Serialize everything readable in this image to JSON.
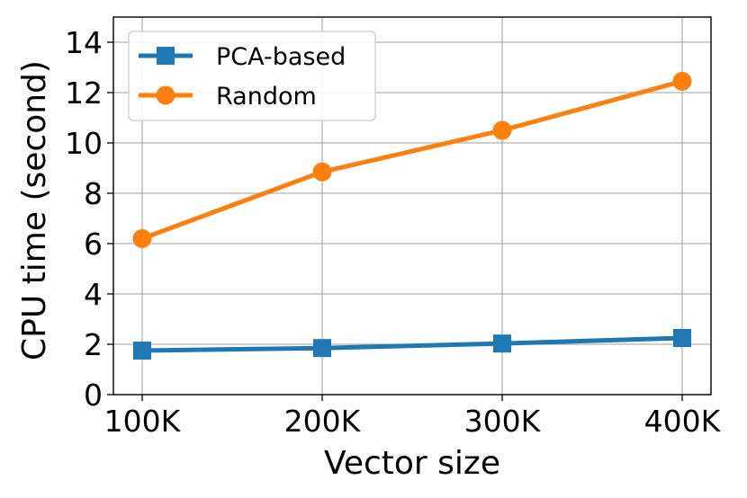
{
  "chart_data": {
    "type": "line",
    "title": "",
    "xlabel": "Vector size",
    "ylabel": "CPU time (second)",
    "categories": [
      "100K",
      "200K",
      "300K",
      "400K"
    ],
    "x": [
      100000,
      200000,
      300000,
      400000
    ],
    "xlim": [
      84000,
      416000
    ],
    "ylim": [
      0,
      15
    ],
    "yticks": [
      0,
      2,
      4,
      6,
      8,
      10,
      12,
      14
    ],
    "ytick_labels": [
      "0",
      "2",
      "4",
      "6",
      "8",
      "10",
      "12",
      "14"
    ],
    "grid": true,
    "legend_position": "top-left",
    "series": [
      {
        "name": "PCA-based",
        "marker": "square",
        "color": "#1f77b4",
        "values": [
          1.75,
          1.85,
          2.03,
          2.25
        ]
      },
      {
        "name": "Random",
        "marker": "circle",
        "color": "#ff7f0e",
        "values": [
          6.2,
          8.85,
          10.5,
          12.45
        ]
      }
    ]
  }
}
